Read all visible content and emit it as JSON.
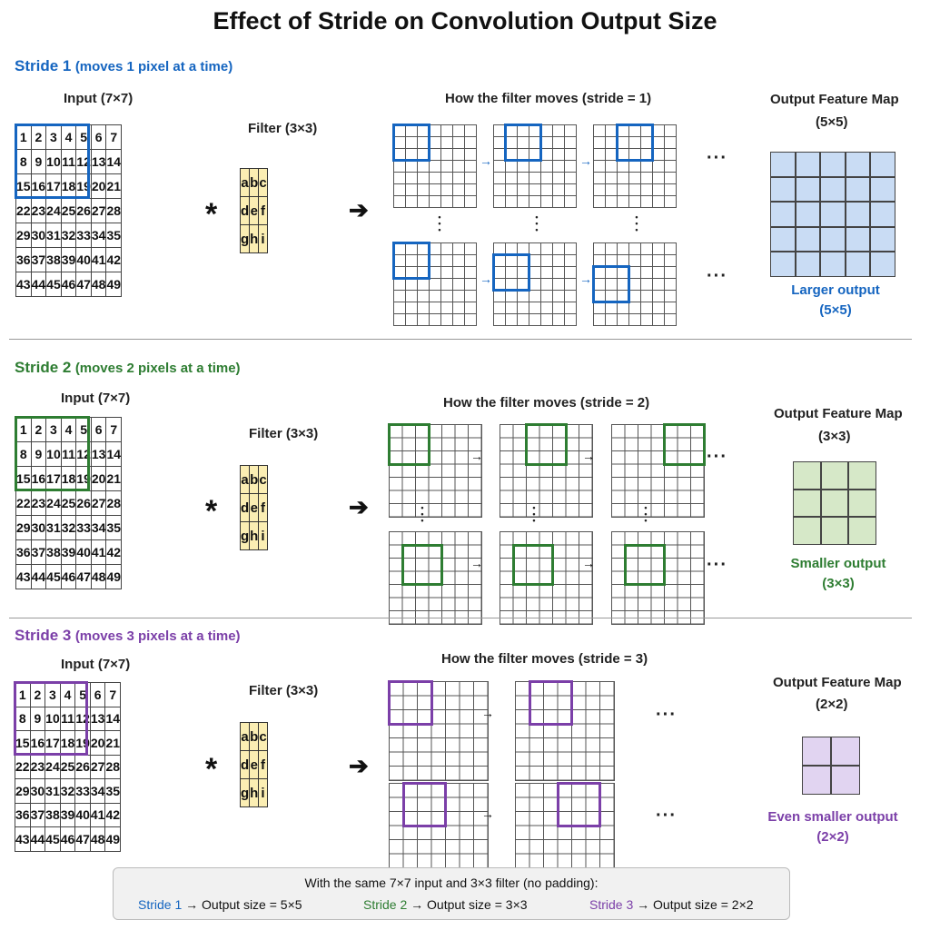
{
  "title": "Effect of Stride on Convolution Output Size",
  "colors": {
    "blue": "#1565c0",
    "green": "#2e7d32",
    "purple": "#7b3fa8",
    "blue_fill": "#c9dcf4",
    "green_fill": "#d6e8c8",
    "purple_fill": "#e1d4f1",
    "filter_fill": "#fbeeb3"
  },
  "input_values": [
    [
      1,
      2,
      3,
      4,
      5,
      6,
      7
    ],
    [
      8,
      9,
      10,
      11,
      12,
      13,
      14
    ],
    [
      15,
      16,
      17,
      18,
      19,
      20,
      21
    ],
    [
      22,
      23,
      24,
      25,
      26,
      27,
      28
    ],
    [
      29,
      30,
      31,
      32,
      33,
      34,
      35
    ],
    [
      36,
      37,
      38,
      39,
      40,
      41,
      42
    ],
    [
      43,
      44,
      45,
      46,
      47,
      48,
      49
    ]
  ],
  "filter_values": [
    [
      "a",
      "b",
      "c"
    ],
    [
      "d",
      "e",
      "f"
    ],
    [
      "g",
      "h",
      "i"
    ]
  ],
  "sections": [
    {
      "id": "s1",
      "stride_label": "Stride 1",
      "stride_note": "(moves 1 pixel at a time)",
      "input_label": "Input (7×7)",
      "filter_label": "Filter (3×3)",
      "star": "*",
      "arrow": "➔",
      "moves_label": "How the filter moves (stride = 1)",
      "output_title": "Output Feature Map",
      "output_size": "(5×5)",
      "output_caption": "Larger output",
      "output_caption_size": "(5×5)",
      "output_n": 5,
      "small_arrow": "→",
      "ellipsis": "···",
      "vdots": "⋮"
    },
    {
      "id": "s2",
      "stride_label": "Stride 2",
      "stride_note": "(moves 2 pixels at a time)",
      "input_label": "Input (7×7)",
      "filter_label": "Filter (3×3)",
      "star": "*",
      "arrow": "➔",
      "moves_label": "How the filter moves (stride = 2)",
      "output_title": "Output Feature Map",
      "output_size": "(3×3)",
      "output_caption": "Smaller output",
      "output_caption_size": "(3×3)",
      "output_n": 3,
      "small_arrow": "→",
      "ellipsis": "···",
      "vdots": "⋮"
    },
    {
      "id": "s3",
      "stride_label": "Stride 3",
      "stride_note": "(moves 3 pixels at a time)",
      "input_label": "Input (7×7)",
      "filter_label": "Filter (3×3)",
      "star": "*",
      "arrow": "➔",
      "moves_label": "How the filter moves (stride = 3)",
      "output_title": "Output Feature Map",
      "output_size": "(2×2)",
      "output_caption": "Even smaller output",
      "output_caption_size": "(2×2)",
      "output_n": 2,
      "small_arrow": "→",
      "ellipsis": "···",
      "vdots": "⋮"
    }
  ],
  "summary": {
    "intro": "With the same 7×7 input and 3×3 filter (no padding):",
    "items": [
      {
        "stride": "Stride 1",
        "result": "→ Output size = 5×5"
      },
      {
        "stride": "Stride 2",
        "result": "→ Output size = 3×3"
      },
      {
        "stride": "Stride 3",
        "result": "→ Output size = 2×2"
      }
    ]
  }
}
